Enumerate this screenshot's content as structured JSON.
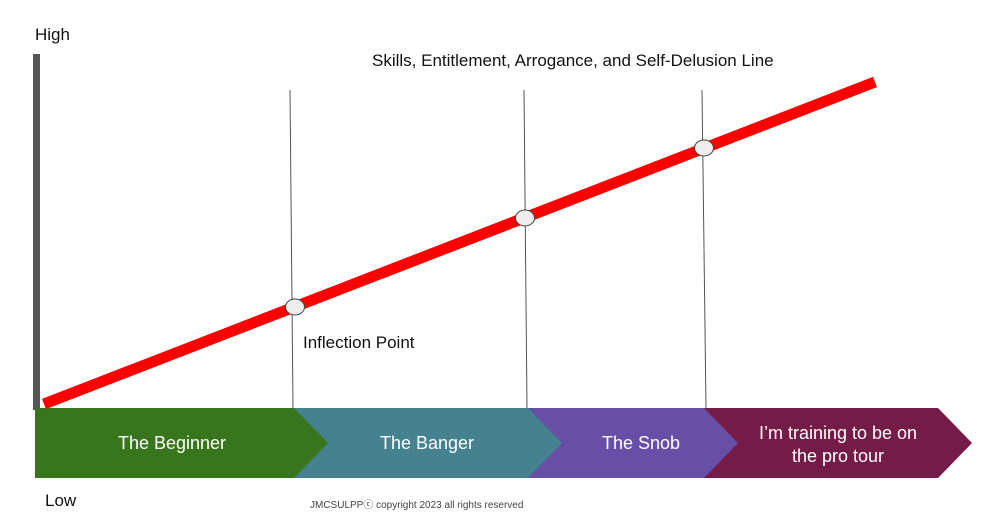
{
  "axis": {
    "high_label": "High",
    "low_label": "Low"
  },
  "line": {
    "title": "Skills, Entitlement, Arrogance, and Self-Delusion Line",
    "color": "#ff0000"
  },
  "annotations": {
    "inflection_point": "Inflection Point"
  },
  "stages": [
    {
      "label_lines": [
        "The Beginner"
      ],
      "color": "#38761d"
    },
    {
      "label_lines": [
        "The Banger"
      ],
      "color": "#45818e"
    },
    {
      "label_lines": [
        "The Snob"
      ],
      "color": "#674ea7"
    },
    {
      "label_lines": [
        "I’m training to be on",
        "the pro tour"
      ],
      "color": "#741b47"
    }
  ],
  "footer": {
    "copyright": "JMCSULPPⓒ copyright 2023 all rights reserved"
  }
}
